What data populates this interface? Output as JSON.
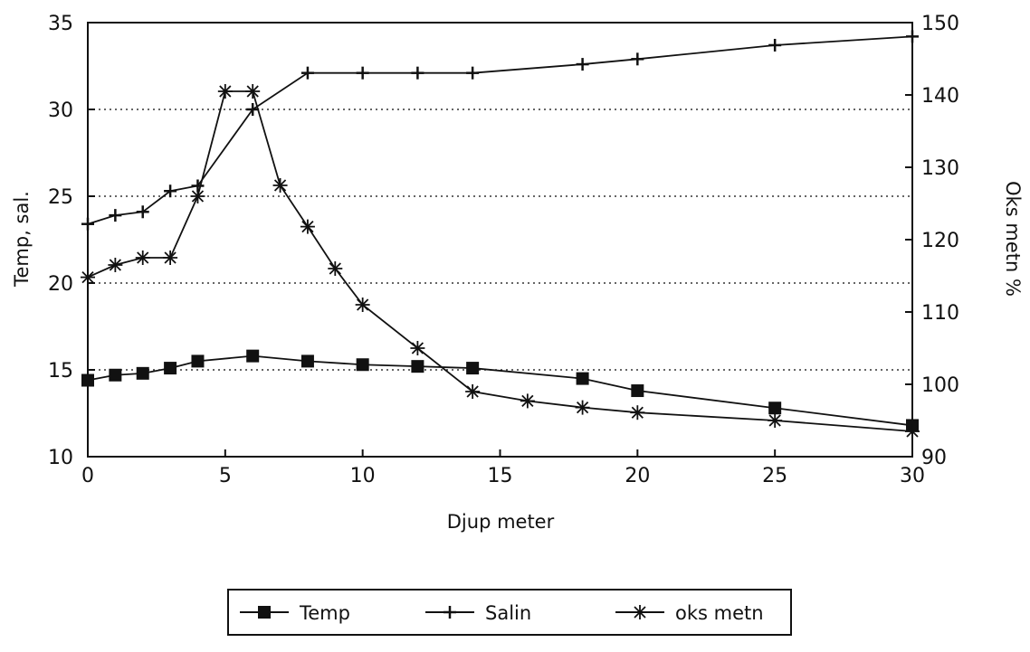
{
  "chart_data": {
    "type": "line",
    "xlabel": "Djup meter",
    "ylabel": "Temp,  sal.",
    "y2label": "Oks metn %",
    "xlim": [
      0,
      30
    ],
    "ylim": [
      10,
      35
    ],
    "y2lim": [
      90,
      150
    ],
    "xticks": [
      0,
      5,
      10,
      15,
      20,
      25,
      30
    ],
    "yticks": [
      10,
      15,
      20,
      25,
      30,
      35
    ],
    "y2ticks": [
      90,
      100,
      110,
      120,
      130,
      140,
      150
    ],
    "grid": "horizontal dotted at 15, 20, 25, 30",
    "legend_position": "bottom-center",
    "series": [
      {
        "name": "Temp",
        "axis": "left",
        "marker": "square",
        "x": [
          0,
          1,
          2,
          3,
          4,
          6,
          8,
          10,
          12,
          14,
          18,
          20,
          25,
          30
        ],
        "y": [
          14.4,
          14.7,
          14.8,
          15.1,
          15.5,
          15.8,
          15.5,
          15.3,
          15.2,
          15.1,
          14.5,
          13.8,
          12.8,
          11.8
        ]
      },
      {
        "name": "Salin",
        "axis": "left",
        "marker": "plus",
        "x": [
          0,
          1,
          2,
          3,
          4,
          6,
          8,
          10,
          12,
          14,
          18,
          20,
          25,
          30
        ],
        "y": [
          23.4,
          23.9,
          24.1,
          25.3,
          25.6,
          30.0,
          32.1,
          32.1,
          32.1,
          32.1,
          32.6,
          32.9,
          33.7,
          34.2
        ]
      },
      {
        "name": "oks metn",
        "axis": "right",
        "marker": "asterisk",
        "x": [
          0,
          1,
          2,
          3,
          4,
          5,
          6,
          7,
          8,
          9,
          10,
          12,
          14,
          16,
          18,
          20,
          25,
          30
        ],
        "y": [
          114.8,
          116.5,
          117.5,
          117.5,
          126,
          140.5,
          140.5,
          127.5,
          121.8,
          116,
          111,
          105,
          99,
          97.7,
          96.8,
          96.1,
          95,
          93.5
        ]
      }
    ]
  }
}
